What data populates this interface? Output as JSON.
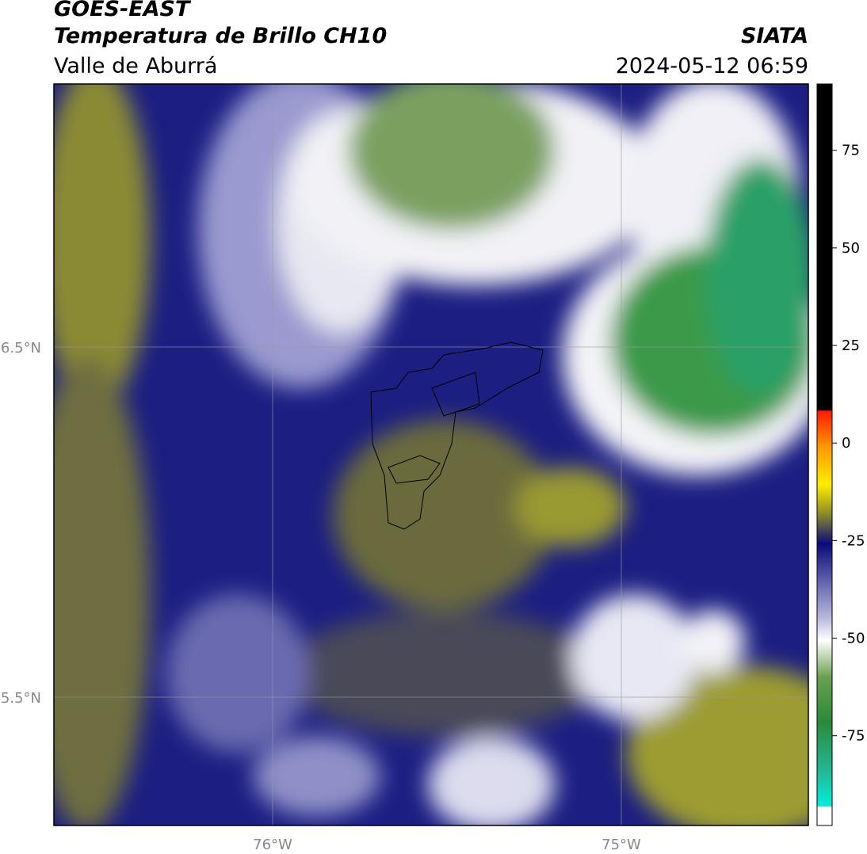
{
  "header": {
    "title": "GOES-EAST",
    "subtitle": "Temperatura de Brillo CH10",
    "region": "Valle de Aburrá",
    "source": "SIATA",
    "datetime": "2024-05-12 06:59"
  },
  "map": {
    "lat_labels": [
      "6.5°N",
      "5.5°N"
    ],
    "lon_labels": [
      "76°W",
      "75°W"
    ]
  },
  "colorbar": {
    "lim": [
      -98,
      92
    ],
    "ticks": [
      75,
      50,
      25,
      0,
      -25,
      -50,
      -75
    ]
  }
}
